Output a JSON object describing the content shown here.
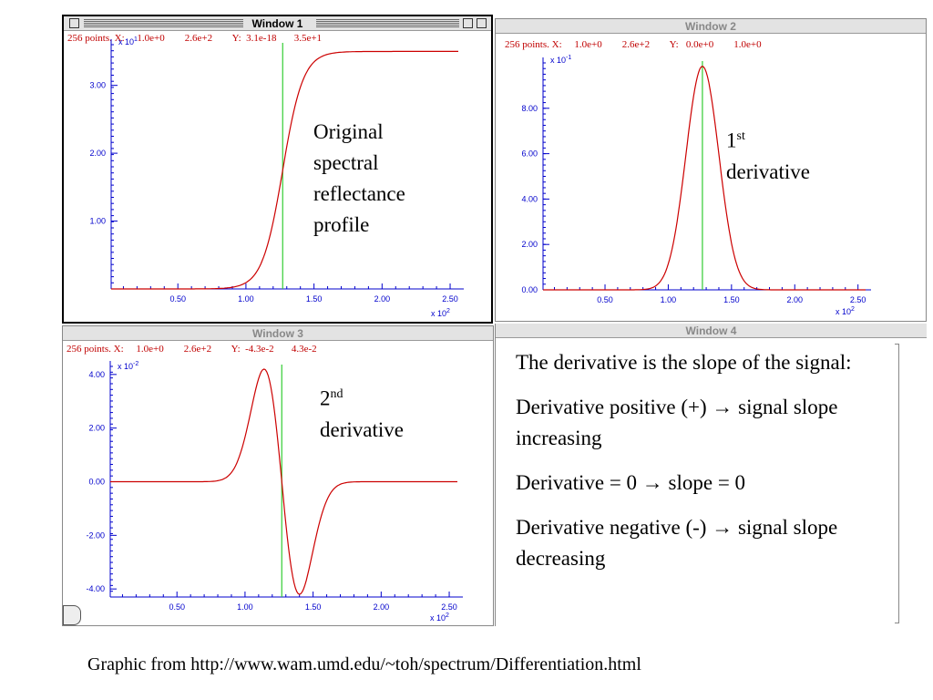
{
  "windows": [
    {
      "id": "w1",
      "title": "Window 1",
      "info": "256 points. X:     1.0e+0        2.6e+2        Y:  3.1e-18       3.5e+1",
      "yexp_base": "x 10",
      "yexp_pow": "1",
      "xexp_base": "x 10",
      "xexp_pow": "2",
      "annotation": [
        "Original",
        "spectral",
        "reflectance",
        "profile"
      ]
    },
    {
      "id": "w2",
      "title": "Window 2",
      "info": "256 points. X:     1.0e+0        2.6e+2        Y:   0.0e+0        1.0e+0",
      "yexp_base": "x 10",
      "yexp_pow": "-1",
      "xexp_base": "x 10",
      "xexp_pow": "2",
      "annotation_num": "1",
      "annotation_sup": "st",
      "annotation_word": "derivative"
    },
    {
      "id": "w3",
      "title": "Window 3",
      "info": "256 points. X:     1.0e+0        2.6e+2        Y:  -4.3e-2       4.3e-2",
      "yexp_base": "x 10",
      "yexp_pow": "-2",
      "xexp_base": "x 10",
      "xexp_pow": "2",
      "annotation_num": "2",
      "annotation_sup": "nd",
      "annotation_word": "derivative"
    },
    {
      "id": "w4",
      "title": "Window 4",
      "paragraphs": [
        "The derivative is the slope of the signal:",
        "Derivative positive (+) → signal slope increasing",
        "Derivative = 0 → slope = 0",
        "Derivative negative (-) → signal slope decreasing"
      ]
    }
  ],
  "caption": "Graphic from http://www.wam.umd.edu/~toh/spectrum/Differentiation.html",
  "chart_data": [
    {
      "type": "line",
      "title": "",
      "x_range": [
        1,
        256
      ],
      "x_scale": "x 10^2",
      "xticks": [
        "0.50",
        "1.00",
        "1.50",
        "2.00",
        "2.50"
      ],
      "xtick_values": [
        50,
        100,
        150,
        200,
        250
      ],
      "ylim": [
        0,
        3.6
      ],
      "y_scale": "x 10^1",
      "yticks": [
        "1.00",
        "2.00",
        "3.00"
      ],
      "ytick_values": [
        1,
        2,
        3
      ],
      "marker_x": 127,
      "series": [
        {
          "curve": "sigmoid",
          "center": 127,
          "width": 12,
          "max": 3.5
        }
      ]
    },
    {
      "type": "line",
      "title": "",
      "x_range": [
        1,
        256
      ],
      "x_scale": "x 10^2",
      "xticks": [
        "0.50",
        "1.00",
        "1.50",
        "2.00",
        "2.50"
      ],
      "xtick_values": [
        50,
        100,
        150,
        200,
        250
      ],
      "ylim": [
        0,
        10
      ],
      "y_scale": "x 10^-1",
      "yticks": [
        "0.00",
        "2.00",
        "4.00",
        "6.00",
        "8.00"
      ],
      "ytick_values": [
        0,
        2,
        4,
        6,
        8
      ],
      "marker_x": 127,
      "series": [
        {
          "curve": "gaussian",
          "center": 127,
          "width": 13,
          "max": 9.85
        }
      ]
    },
    {
      "type": "line",
      "title": "",
      "x_range": [
        1,
        256
      ],
      "x_scale": "x 10^2",
      "xticks": [
        "0.50",
        "1.00",
        "1.50",
        "2.00",
        "2.50"
      ],
      "xtick_values": [
        50,
        100,
        150,
        200,
        250
      ],
      "ylim": [
        -4.3,
        4.3
      ],
      "y_scale": "x 10^-2",
      "yticks": [
        "4.00",
        "2.00",
        "0.00",
        "-2.00",
        "-4.00"
      ],
      "ytick_values": [
        4,
        2,
        0,
        -2,
        -4
      ],
      "marker_x": 127,
      "series": [
        {
          "curve": "gaussian-derivative",
          "center": 127,
          "width": 13,
          "max": 4.2
        }
      ]
    }
  ],
  "colors": {
    "curve": "#cc0000",
    "marker": "#33cc33",
    "axis": "#0000cc",
    "info": "#c00000"
  }
}
